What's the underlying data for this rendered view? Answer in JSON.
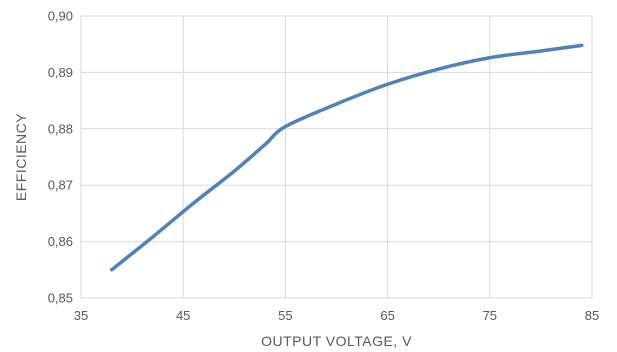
{
  "chart_data": {
    "type": "line",
    "title": "",
    "xlabel": "OUTPUT  VOLTAGE, V",
    "ylabel": "EFFICIENCY",
    "xlim": [
      35,
      85
    ],
    "ylim": [
      0.85,
      0.9
    ],
    "x_ticks": [
      35,
      45,
      55,
      65,
      75,
      85
    ],
    "x_tick_labels": [
      "35",
      "45",
      "55",
      "65",
      "75",
      "85"
    ],
    "y_ticks": [
      0.85,
      0.86,
      0.87,
      0.88,
      0.89,
      0.9
    ],
    "y_tick_labels": [
      "0,85",
      "0,86",
      "0,87",
      "0,88",
      "0,89",
      "0,90"
    ],
    "grid": true,
    "legend": "none",
    "series": [
      {
        "color": "#4f81bd",
        "x": [
          38,
          42,
          46,
          50,
          53,
          55,
          60,
          65,
          70,
          75,
          80,
          84
        ],
        "y": [
          0.855,
          0.8608,
          0.8668,
          0.8725,
          0.8772,
          0.8804,
          0.8844,
          0.8879,
          0.8906,
          0.8926,
          0.8938,
          0.8948
        ]
      }
    ]
  }
}
